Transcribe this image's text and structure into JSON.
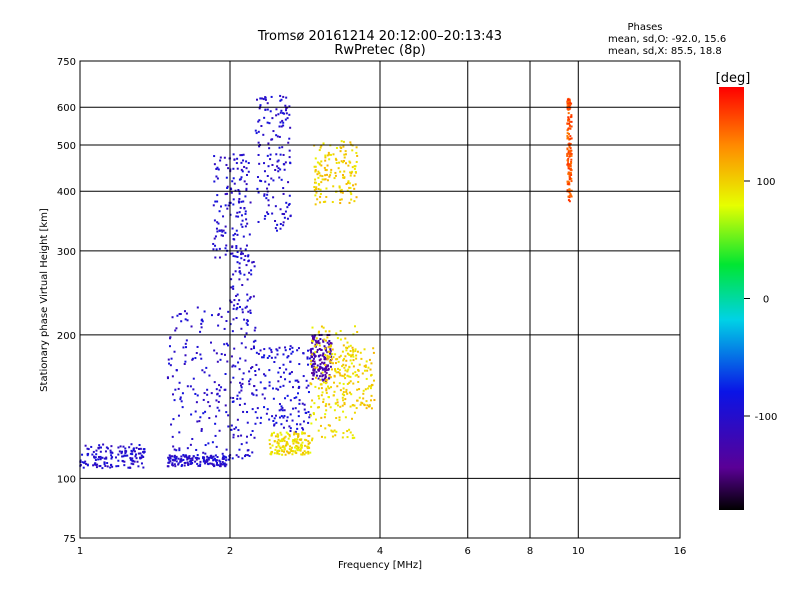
{
  "chart_data": {
    "type": "scatter",
    "title": "Tromsø 20161214 20:12:00–20:13:43",
    "subtitle": "RwPretec (8p)",
    "xlabel": "Frequency [MHz]",
    "ylabel": "Stationary phase Virtual Height [km]",
    "x_scale": "log",
    "y_scale": "log",
    "xlim": [
      1,
      16
    ],
    "ylim": [
      75,
      750
    ],
    "x_ticks": [
      1,
      2,
      4,
      6,
      8,
      10,
      16
    ],
    "x_tick_labels": [
      "1",
      "2",
      "4",
      "6",
      "8",
      "10",
      "16"
    ],
    "y_ticks": [
      75,
      100,
      200,
      300,
      400,
      500,
      600,
      750
    ],
    "y_tick_labels": [
      "75",
      "100",
      "200",
      "300",
      "400",
      "500",
      "600",
      "750"
    ],
    "grid": true,
    "stats": {
      "heading": "Phases",
      "line1": "mean, sd,O: -92.0, 15.6",
      "line2": "mean, sd,X:  85.5, 18.8"
    },
    "colorbar": {
      "label": "[deg]",
      "range": [
        -180,
        180
      ],
      "ticks": [
        100,
        0,
        -100
      ],
      "tick_labels": [
        "100",
        "0",
        "-100"
      ],
      "colormap": "rainbow (black-purple-blue-cyan-green-yellow-red)"
    },
    "series": [
      {
        "freq_range": [
          1.0,
          1.35
        ],
        "height_range": [
          105,
          118
        ],
        "phase": -100
      },
      {
        "freq_range": [
          1.5,
          2.0
        ],
        "height_range": [
          106,
          112
        ],
        "phase": -100
      },
      {
        "freq_range": [
          1.5,
          2.0
        ],
        "height_range": [
          112,
          230
        ],
        "phase": -100
      },
      {
        "freq_range": [
          2.0,
          2.25
        ],
        "height_range": [
          110,
          300
        ],
        "phase": -100
      },
      {
        "freq_range": [
          1.85,
          2.2
        ],
        "height_range": [
          290,
          480
        ],
        "phase": -100
      },
      {
        "freq_range": [
          2.25,
          2.65
        ],
        "height_range": [
          330,
          640
        ],
        "phase": -100
      },
      {
        "freq_range": [
          2.25,
          2.9
        ],
        "height_range": [
          125,
          190
        ],
        "phase": -95
      },
      {
        "freq_range": [
          2.9,
          3.2
        ],
        "height_range": [
          160,
          200
        ],
        "phase": -130
      },
      {
        "freq_range": [
          2.4,
          2.9
        ],
        "height_range": [
          112,
          125
        ],
        "phase": 95
      },
      {
        "freq_range": [
          2.9,
          3.6
        ],
        "height_range": [
          120,
          210
        ],
        "phase": 95
      },
      {
        "freq_range": [
          3.1,
          3.9
        ],
        "height_range": [
          140,
          190
        ],
        "phase": 100
      },
      {
        "freq_range": [
          2.95,
          3.6
        ],
        "height_range": [
          375,
          510
        ],
        "phase": 100
      },
      {
        "freq_range": [
          9.5,
          9.7
        ],
        "height_range": [
          380,
          630
        ],
        "phase": 150
      }
    ]
  }
}
